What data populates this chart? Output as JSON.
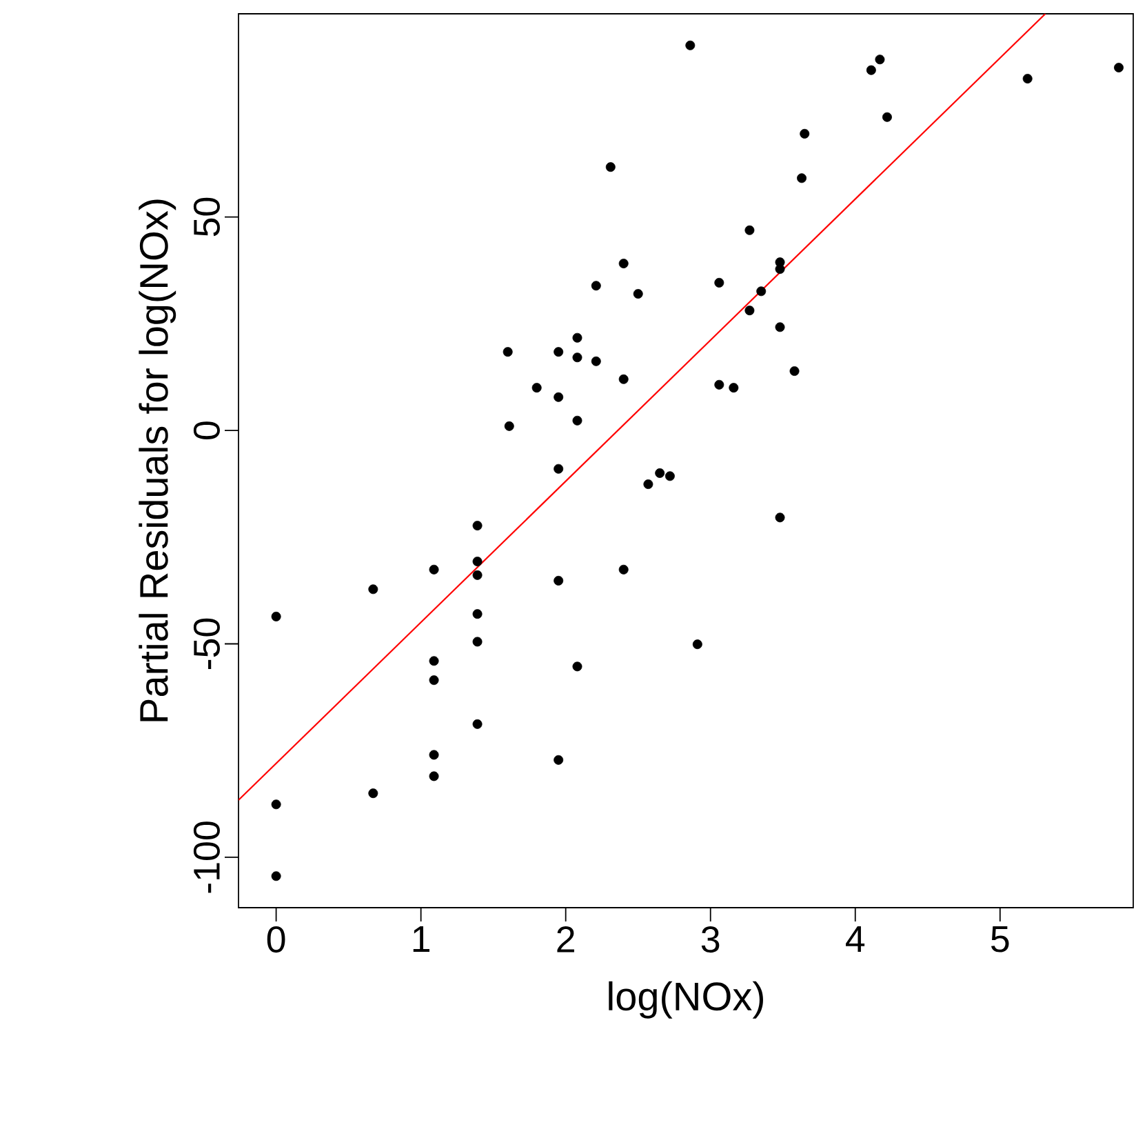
{
  "chart_data": {
    "type": "scatter",
    "xlabel": "log(NOx)",
    "ylabel": "Partial Residuals for log(NOx)",
    "xlim": [
      -0.26,
      5.92
    ],
    "ylim": [
      -111.8,
      97.6
    ],
    "xticks": [
      0,
      1,
      2,
      3,
      4,
      5
    ],
    "yticks": [
      -100,
      -50,
      0,
      50
    ],
    "series": [
      {
        "type": "scatter",
        "color": "#000000",
        "marker": "circle",
        "x": [
          0,
          0,
          0,
          0.67,
          0.67,
          1.09,
          1.09,
          1.09,
          1.09,
          1.09,
          1.39,
          1.39,
          1.39,
          1.39,
          1.39,
          1.39,
          1.6,
          1.61,
          1.8,
          1.95,
          1.95,
          1.95,
          1.95,
          1.95,
          2.08,
          2.08,
          2.08,
          2.08,
          2.21,
          2.21,
          2.31,
          2.4,
          2.4,
          2.4,
          2.5,
          2.57,
          2.65,
          2.72,
          2.86,
          2.91,
          3.06,
          3.06,
          3.16,
          3.27,
          3.27,
          3.35,
          3.48,
          3.48,
          3.48,
          3.48,
          3.58,
          3.63,
          3.65,
          4.11,
          4.17,
          4.22,
          5.19,
          5.82
        ],
        "values": [
          -43.6,
          -87.6,
          -104.4,
          -37.2,
          -85,
          -32.6,
          -54,
          -58.5,
          -76,
          -81,
          -22.3,
          -30.7,
          -33.9,
          -43,
          -49.5,
          -68.8,
          18.4,
          1,
          10,
          18.4,
          7.8,
          -9,
          -35.2,
          -77.2,
          21.7,
          17.1,
          2.3,
          -55.3,
          33.9,
          16.2,
          61.7,
          39.1,
          12,
          -32.6,
          32,
          -12.6,
          -10,
          -10.7,
          90.2,
          -50.1,
          34.6,
          10.7,
          10,
          46.9,
          28.1,
          32.6,
          39.4,
          37.8,
          24.2,
          -20.4,
          13.9,
          59.1,
          69.5,
          84.4,
          86.9,
          73.4,
          82.4,
          85
        ]
      },
      {
        "type": "line",
        "color": "#ff0000",
        "line_style": "solid",
        "marker": "none",
        "x": [
          -0.26,
          5.313
        ],
        "values": [
          -86.6,
          97.6
        ]
      }
    ]
  }
}
